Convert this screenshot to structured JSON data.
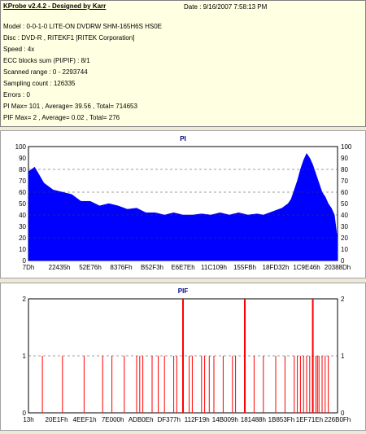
{
  "info": {
    "title": "KProbe v2.4.2 - Designed by Karr",
    "date": "Date : 9/16/2007 7:58:13 PM",
    "lines": [
      "Model : 0-0-1-0 LITE-ON DVDRW SHM-165H6S HS0E",
      "Disc : DVD-R , RITEKF1 [RITEK Corporation]",
      "Speed : 4x",
      "ECC blocks sum (PI/PIF) : 8/1",
      "Scanned range : 0 - 2293744",
      "Sampling count : 126335",
      "Errors : 0",
      "PI Max= 101 , Average= 39.56 , Total= 714653",
      "PIF Max= 2 , Average= 0.02 , Total= 276"
    ]
  },
  "colors": {
    "pi_fill": "#0000ff",
    "pif_line": "#ff0000",
    "grid": "#404040",
    "title": "#000080"
  },
  "chart_data": [
    {
      "type": "area",
      "title": "PI",
      "ylim": [
        0,
        100
      ],
      "yticks": [
        "0",
        "10",
        "20",
        "30",
        "40",
        "50",
        "60",
        "70",
        "80",
        "90",
        "100"
      ],
      "xticks": [
        "7Dh",
        "22435h",
        "52E76h",
        "8376Fh",
        "B52F3h",
        "E6E7Eh",
        "11C109h",
        "155FBh",
        "18FD32h",
        "1C9E46h",
        "20388Dh"
      ],
      "grid": "dashed horizontal at 20,40,60,80",
      "series": [
        {
          "x_fraction": [
            0,
            0.02,
            0.05,
            0.08,
            0.11,
            0.14,
            0.17,
            0.2,
            0.23,
            0.26,
            0.29,
            0.32,
            0.35,
            0.38,
            0.41,
            0.44,
            0.47,
            0.5,
            0.53,
            0.56,
            0.59,
            0.62,
            0.65,
            0.68,
            0.71,
            0.74,
            0.76,
            0.78,
            0.8,
            0.82,
            0.84,
            0.85,
            0.86,
            0.87,
            0.88,
            0.89,
            0.9,
            0.91,
            0.92,
            0.93,
            0.94,
            0.95,
            0.96,
            0.97,
            0.98,
            0.99,
            1.0
          ],
          "values": [
            78,
            82,
            68,
            62,
            60,
            58,
            52,
            52,
            48,
            50,
            48,
            45,
            46,
            42,
            42,
            40,
            42,
            40,
            40,
            41,
            40,
            42,
            40,
            42,
            40,
            41,
            40,
            42,
            44,
            46,
            50,
            54,
            62,
            70,
            80,
            88,
            94,
            90,
            84,
            76,
            68,
            60,
            56,
            50,
            46,
            40,
            18
          ]
        }
      ]
    },
    {
      "type": "bar",
      "title": "PIF",
      "ylim": [
        0,
        2
      ],
      "yticks": [
        "0",
        "1",
        "2"
      ],
      "xticks": [
        "13h",
        "20E1Fh",
        "4EEF1h",
        "7E000h",
        "ADB0Eh",
        "DF377h",
        "112F19h",
        "14B009h",
        "181488h",
        "1B853Fh",
        "1EF71Eh",
        "226B0Fh"
      ],
      "grid": "dashed horizontal at 1",
      "series": [
        {
          "x_fraction": [
            0.045,
            0.11,
            0.18,
            0.24,
            0.27,
            0.31,
            0.35,
            0.36,
            0.37,
            0.4,
            0.42,
            0.44,
            0.47,
            0.48,
            0.5,
            0.52,
            0.53,
            0.56,
            0.57,
            0.585,
            0.6,
            0.63,
            0.66,
            0.67,
            0.7,
            0.73,
            0.76,
            0.8,
            0.83,
            0.86,
            0.87,
            0.88,
            0.89,
            0.9,
            0.91,
            0.92,
            0.93,
            0.935,
            0.94,
            0.95,
            0.96,
            0.97
          ],
          "values": [
            1,
            1,
            1,
            1,
            1,
            1,
            1,
            1,
            1,
            1,
            1,
            1,
            1,
            1,
            2,
            1,
            1,
            1,
            1,
            1,
            1,
            1,
            1,
            1,
            2,
            1,
            1,
            1,
            1,
            1,
            1,
            1,
            1,
            1,
            1,
            2,
            1,
            1,
            1,
            1,
            1,
            1
          ]
        }
      ]
    }
  ]
}
